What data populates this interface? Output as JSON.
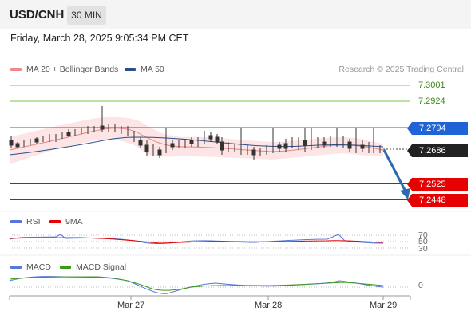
{
  "header": {
    "symbol": "USD/CNH",
    "timeframe": "30 MIN"
  },
  "datetime": "Friday, March 28, 2025 9:05:34 PM CET",
  "legend": {
    "ma20": {
      "label": "MA 20 + Bollinger Bands",
      "color": "#f08a8a"
    },
    "ma50": {
      "label": "MA 50",
      "color": "#2c4f8c"
    }
  },
  "credit": "Research © 2025 Trading Central",
  "levels": {
    "r2": "7.3001",
    "r1": "7.2924",
    "pivot": "7.2794",
    "last": "7.2686",
    "s1": "7.2525",
    "s2": "7.2448"
  },
  "colors": {
    "resistance": "#7cc04a",
    "pivot": "#1f63d6",
    "support": "#e60000",
    "last": "#222222",
    "arrow": "#2d6bb0",
    "rsi": "#5577dd",
    "rsi_ma": "#e60000",
    "macd": "#5577dd",
    "macd_signal": "#3a9a1a"
  },
  "rsi": {
    "label": "RSI",
    "ma_label": "9MA",
    "ticks": [
      "70",
      "50",
      "30"
    ]
  },
  "macd": {
    "label": "MACD",
    "signal_label": "MACD Signal",
    "zero": "0"
  },
  "x_axis": [
    "Mar 27",
    "Mar 28",
    "Mar 29"
  ]
}
